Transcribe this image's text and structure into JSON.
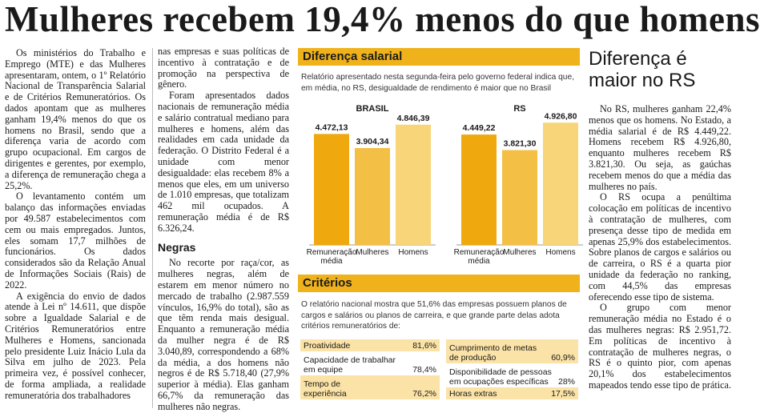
{
  "headline": "Mulheres recebem 19,4% menos do que homens",
  "column1": [
    "Os ministérios do Trabalho e Emprego (MTE) e das Mulheres apresentaram, ontem, o 1º Relatório Nacional de Transparência Salarial e de Critérios Remuneratórios. Os dados apontam que as mulheres ganham 19,4% menos do que os homens no Brasil, sendo que a diferença varia de acordo com grupo ocupacional. Em cargos de dirigentes e gerentes, por exemplo, a diferença de remuneração chega a 25,2%.",
    "O levantamento contém um balanço das informações enviadas por 49.587 estabelecimentos com cem ou mais empregados. Juntos, eles somam 17,7 milhões de funcionários. Os dados considerados são da Relação Anual de Informações Sociais (Rais) de 2022.",
    "A exigência do envio de dados atende à Lei nº 14.611, que dispõe sobre a Igualdade Salarial e de Critérios Remuneratórios entre Mulheres e Homens, sancionada pelo presidente Luiz Inácio Lula da Silva em julho de 2023. Pela primeira vez, é possível conhecer, de forma ampliada, a realidade remuneratória dos trabalhadores"
  ],
  "column2": {
    "paragraphs_top": [
      "nas empresas e suas políticas de incentivo à contratação e de promoção na perspectiva de gênero.",
      "Foram apresentados dados nacionais de remuneração média e salário contratual mediano para mulheres e homens, além das realidades em cada unidade da federação. O Distrito Federal é a unidade com menor desigualdade: elas recebem 8% a menos que eles, em um universo de 1.010 empresas, que totalizam 462 mil ocupados. A remuneração média é de R$ 6.326,24."
    ],
    "subhead": "Negras",
    "paragraphs_bottom": [
      "No recorte por raça/cor, as mulheres negras, além de estarem em menor número no mercado de trabalho (2.987.559 vínculos, 16,9% do total), são as que têm renda mais desigual. Enquanto a remuneração média da mulher negra é de R$ 3.040,89, correspondendo a 68% da média, a dos homens não negros é de R$ 5.718,40 (27,9% superior à média). Elas ganham 66,7% da remuneração das mulheres não negras."
    ]
  },
  "infographic": {
    "header": "Diferença salarial",
    "caption": "Relatório apresentado nesta segunda-feira pelo governo federal indica que, em média, no RS, desigualdade de rendimento é maior que no Brasil",
    "colors": {
      "dark": "#f0a80f",
      "mid": "#f4bf45",
      "light": "#f9d57a",
      "header": "#f0b21a",
      "shade": "#fbe3a7"
    }
  },
  "chart_data": [
    {
      "type": "bar",
      "title": "BRASIL",
      "categories": [
        "Remuneração média",
        "Mulheres",
        "Homens"
      ],
      "values": [
        4472.13,
        3904.34,
        4846.39
      ],
      "labels": [
        "4.472,13",
        "3.904,34",
        "4.846,39"
      ],
      "ylim": [
        0,
        5000
      ]
    },
    {
      "type": "bar",
      "title": "RS",
      "categories": [
        "Remuneração média",
        "Mulheres",
        "Homens"
      ],
      "values": [
        4449.22,
        3821.3,
        4926.8
      ],
      "labels": [
        "4.449,22",
        "3.821,30",
        "4.926,80"
      ],
      "ylim": [
        0,
        5000
      ]
    }
  ],
  "criterios": {
    "header": "Critérios",
    "intro": "O relatório nacional mostra que 51,6% das empresas possuem planos de cargos e salários ou planos de carreira, e que grande parte delas adota critérios remuneratórios de:",
    "left": [
      {
        "label": "Proatividade",
        "value": "81,6%"
      },
      {
        "label": "Capacidade de trabalhar em equipe",
        "value": "78,4%"
      },
      {
        "label": "Tempo de experiência",
        "value": "76,2%"
      }
    ],
    "right": [
      {
        "label": "Cumprimento de metas de produção",
        "value": "60,9%"
      },
      {
        "label": "Disponibilidade de pessoas em ocupações específicas",
        "value": "28%"
      },
      {
        "label": "Horas extras",
        "value": "17,5%"
      }
    ]
  },
  "sidebar": {
    "title": "Diferença é maior no RS",
    "paragraphs": [
      "No RS, mulheres ganham 22,4% menos que os homens. No Estado, a média salarial é de R$ 4.449,22. Homens recebem R$ 4.926,80, enquanto mulheres recebem R$ 3.821,30. Ou seja, as gaúchas recebem menos do que a média das mulheres no país.",
      "O RS ocupa a penúltima colocação em políticas de incentivo à contratação de mulheres, com presença desse tipo de medida em apenas 25,9% dos estabelecimentos. Sobre planos de cargos e salários ou de carreira, o RS é a quarta pior unidade da federação no ranking, com 44,5% das empresas oferecendo esse tipo de sistema.",
      "O grupo com menor remuneração média no Estado é o das mulheres negras: R$ 2.951,72. Em políticas de incentivo à contratação de mulheres negras, o RS é o quinto pior, com apenas 20,1% dos estabelecimentos mapeados tendo esse tipo de prática."
    ]
  }
}
